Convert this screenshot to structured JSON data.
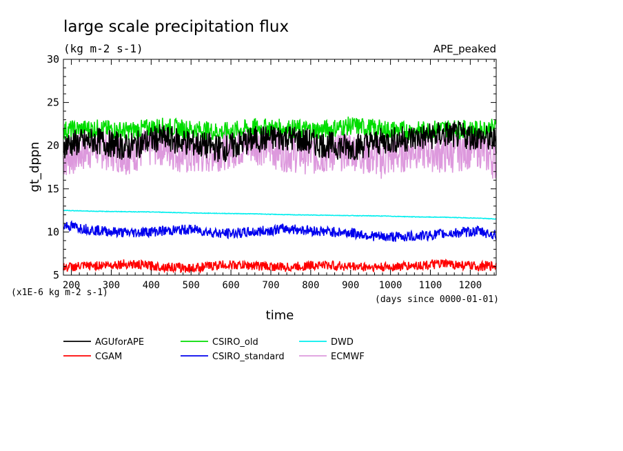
{
  "chart_data": {
    "type": "line",
    "title": "large scale precipitation flux",
    "subtitle": "(kg m-2 s-1)",
    "annotation": "APE_peaked",
    "xlabel": "time",
    "ylabel": "gt_dppn",
    "x_units_note": "(days since 0000-01-01)",
    "y_scale_note": "(x1E-6 kg m-2 s-1)",
    "xlim": [
      180,
      1265
    ],
    "ylim": [
      5,
      30
    ],
    "xticks": [
      200,
      300,
      400,
      500,
      600,
      700,
      800,
      900,
      1000,
      1100,
      1200
    ],
    "yticks": [
      5,
      10,
      15,
      20,
      25,
      30
    ],
    "grid": false,
    "legend_position": "bottom",
    "series": [
      {
        "name": "AGUforAPE",
        "color": "#000000",
        "x": [
          180,
          260,
          340,
          420,
          500,
          580,
          660,
          740,
          820,
          900,
          980,
          1060,
          1140,
          1220,
          1265
        ],
        "values": [
          20.1,
          20.6,
          19.8,
          20.9,
          20.3,
          19.6,
          20.7,
          21.0,
          20.2,
          19.8,
          20.5,
          20.9,
          21.3,
          21.0,
          20.6
        ]
      },
      {
        "name": "CGAM",
        "color": "#ff0000",
        "x": [
          180,
          260,
          340,
          420,
          500,
          580,
          660,
          740,
          820,
          900,
          980,
          1060,
          1140,
          1220,
          1265
        ],
        "values": [
          5.9,
          6.1,
          6.3,
          6.0,
          5.8,
          6.2,
          6.1,
          5.9,
          6.2,
          6.0,
          5.9,
          6.1,
          6.3,
          6.0,
          6.1
        ]
      },
      {
        "name": "CSIRO_old",
        "color": "#00dd00",
        "x": [
          180,
          260,
          340,
          420,
          500,
          580,
          660,
          740,
          820,
          900,
          980,
          1060,
          1140,
          1220,
          1265
        ],
        "values": [
          21.8,
          22.0,
          21.7,
          22.2,
          21.9,
          21.6,
          22.1,
          22.0,
          21.8,
          22.3,
          21.9,
          21.7,
          22.0,
          21.8,
          22.1
        ]
      },
      {
        "name": "CSIRO_standard",
        "color": "#0000ee",
        "x": [
          180,
          260,
          340,
          420,
          500,
          580,
          660,
          740,
          820,
          900,
          980,
          1060,
          1140,
          1220,
          1265
        ],
        "values": [
          10.8,
          10.2,
          9.9,
          10.1,
          10.3,
          9.8,
          10.0,
          10.4,
          10.1,
          9.9,
          9.4,
          9.5,
          9.8,
          10.1,
          9.6
        ]
      },
      {
        "name": "DWD",
        "color": "#00eeee",
        "x": [
          180,
          260,
          340,
          420,
          500,
          580,
          660,
          740,
          820,
          900,
          980,
          1060,
          1140,
          1220,
          1265
        ],
        "values": [
          12.5,
          12.4,
          12.35,
          12.3,
          12.2,
          12.15,
          12.1,
          12.0,
          11.95,
          11.9,
          11.85,
          11.75,
          11.7,
          11.6,
          11.5
        ]
      },
      {
        "name": "ECMWF",
        "color": "#dd99dd",
        "x": [
          180,
          260,
          340,
          420,
          500,
          580,
          660,
          740,
          820,
          900,
          980,
          1060,
          1140,
          1220,
          1265
        ],
        "values": [
          18.5,
          19.8,
          19.0,
          20.1,
          18.7,
          19.5,
          20.2,
          19.3,
          18.9,
          19.6,
          18.4,
          19.7,
          19.0,
          19.9,
          18.2
        ]
      }
    ]
  }
}
